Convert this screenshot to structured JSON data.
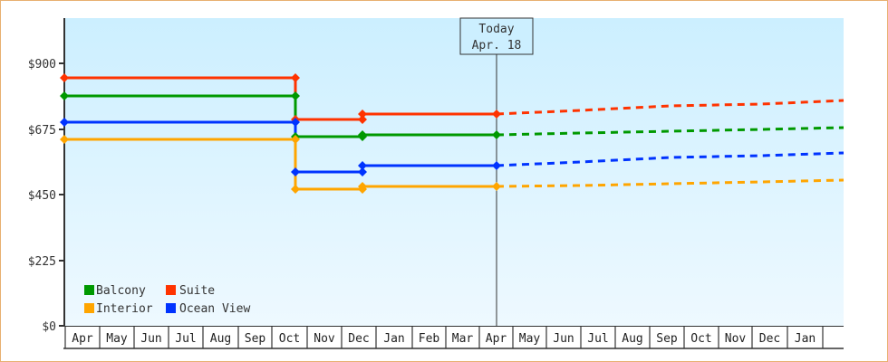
{
  "chart_data": {
    "type": "line",
    "title": "",
    "xlabel": "",
    "ylabel": "",
    "ylim": [
      0,
      1100
    ],
    "y_ticks": [
      "$0",
      "$225",
      "$450",
      "$675",
      "$900"
    ],
    "x_ticks": [
      "Apr",
      "May",
      "Jun",
      "Jul",
      "Aug",
      "Sep",
      "Oct",
      "Nov",
      "Dec",
      "Jan",
      "Feb",
      "Mar",
      "Apr",
      "May",
      "Jun",
      "Jul",
      "Aug",
      "Sep",
      "Oct",
      "Nov",
      "Dec",
      "Jan",
      ""
    ],
    "annotation": {
      "label_line1": "Today",
      "label_line2": "Apr. 18"
    },
    "legend": [
      "Balcony",
      "Suite",
      "Interior",
      "Ocean View"
    ],
    "legend_position": "bottom-left inside",
    "grid": false,
    "series": [
      {
        "name": "Balcony",
        "color": "#009900",
        "historical": [
          [
            0,
            790
          ],
          [
            6.7,
            790
          ],
          [
            6.7,
            649
          ],
          [
            8.6,
            649
          ],
          [
            8.6,
            655
          ],
          [
            12.7,
            655
          ]
        ],
        "projected": [
          [
            12.7,
            655
          ],
          [
            22.5,
            680
          ]
        ]
      },
      {
        "name": "Suite",
        "color": "#ff3300",
        "historical": [
          [
            0,
            850
          ],
          [
            6.7,
            850
          ],
          [
            6.7,
            708
          ],
          [
            8.6,
            708
          ],
          [
            8.6,
            726
          ],
          [
            12.7,
            726
          ]
        ],
        "projected": [
          [
            12.7,
            726
          ],
          [
            22.5,
            773
          ]
        ]
      },
      {
        "name": "Interior",
        "color": "#ffa500",
        "historical": [
          [
            0,
            640
          ],
          [
            6.7,
            640
          ],
          [
            6.7,
            469
          ],
          [
            8.6,
            469
          ],
          [
            8.6,
            478
          ],
          [
            12.7,
            478
          ]
        ],
        "projected": [
          [
            12.7,
            478
          ],
          [
            22.5,
            500
          ]
        ]
      },
      {
        "name": "Ocean View",
        "color": "#0033ff",
        "historical": [
          [
            0,
            700
          ],
          [
            6.7,
            700
          ],
          [
            6.7,
            527
          ],
          [
            8.6,
            527
          ],
          [
            8.6,
            549
          ],
          [
            12.7,
            549
          ]
        ],
        "projected": [
          [
            12.7,
            549
          ],
          [
            22.5,
            593
          ]
        ]
      }
    ]
  },
  "ui": {
    "today_line1": "Today",
    "today_line2": "Apr. 18",
    "y_labels": [
      "$900",
      "$675",
      "$450",
      "$225",
      "$0"
    ],
    "months": [
      "Apr",
      "May",
      "Jun",
      "Jul",
      "Aug",
      "Sep",
      "Oct",
      "Nov",
      "Dec",
      "Jan",
      "Feb",
      "Mar",
      "Apr",
      "May",
      "Jun",
      "Jul",
      "Aug",
      "Sep",
      "Oct",
      "Nov",
      "Dec",
      "Jan",
      ""
    ],
    "legend": [
      {
        "label": "Balcony",
        "color": "#009900"
      },
      {
        "label": "Suite",
        "color": "#ff3300"
      },
      {
        "label": "Interior",
        "color": "#ffa500"
      },
      {
        "label": "Ocean View",
        "color": "#0033ff"
      }
    ]
  }
}
